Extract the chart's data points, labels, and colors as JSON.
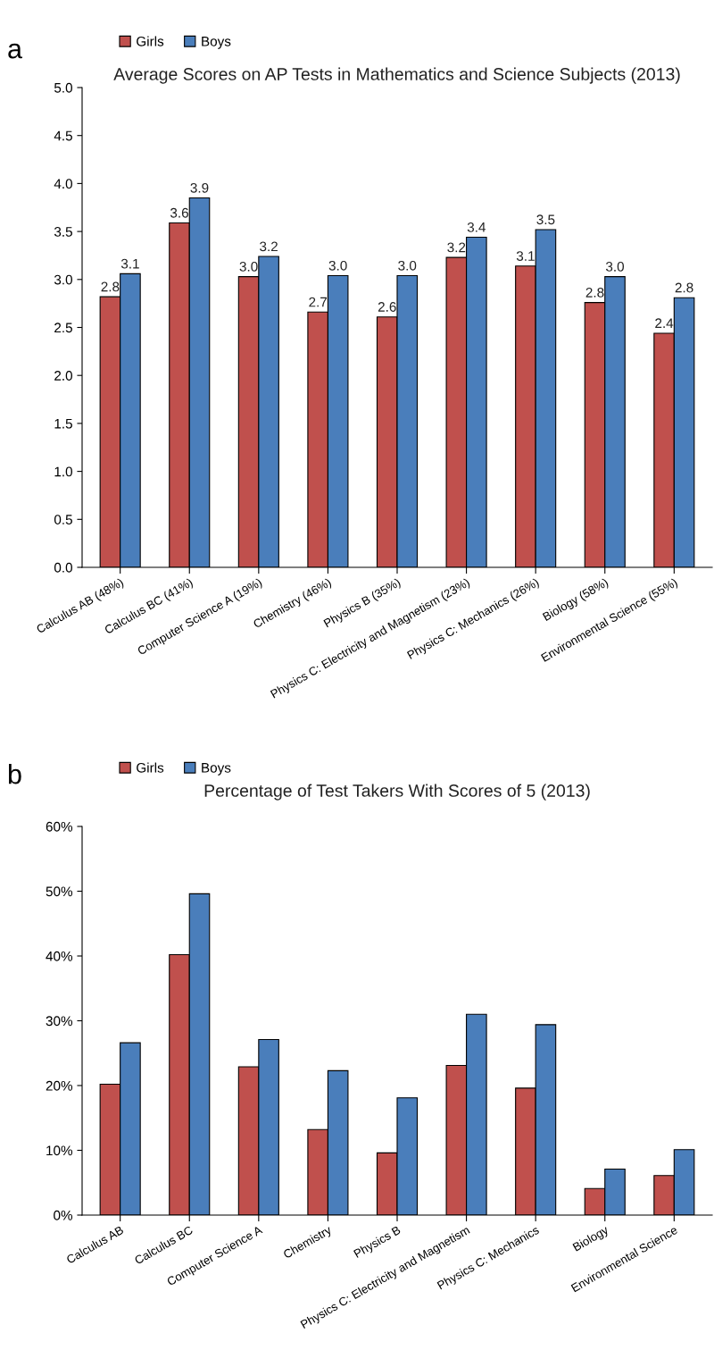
{
  "chart_data": [
    {
      "type": "bar",
      "title": "Average Scores on AP Tests in Mathematics and Science Subjects (2013)",
      "annotations": [
        "a"
      ],
      "categories": [
        "Calculus AB (48%)",
        "Calculus BC (41%)",
        "Computer Science A (19%)",
        "Chemistry (46%)",
        "Physics B (35%)",
        "Physics C: Electricity and Magnetism (23%)",
        "Physics C: Mechanics (26%)",
        "Biology (58%)",
        "Environmental Science (55%)"
      ],
      "series": [
        {
          "name": "Girls",
          "color": "#c0504d",
          "values": [
            2.82,
            3.59,
            3.03,
            2.66,
            2.61,
            3.23,
            3.14,
            2.76,
            2.44
          ],
          "value_labels": [
            "2.8",
            "3.6",
            "3.0",
            "2.7",
            "2.6",
            "3.2",
            "3.1",
            "2.8",
            "2.4"
          ]
        },
        {
          "name": "Boys",
          "color": "#4a7ebb",
          "values": [
            3.06,
            3.85,
            3.24,
            3.04,
            3.04,
            3.44,
            3.52,
            3.03,
            2.81
          ],
          "value_labels": [
            "3.1",
            "3.9",
            "3.2",
            "3.0",
            "3.0",
            "3.4",
            "3.5",
            "3.0",
            "2.8"
          ]
        }
      ],
      "ylim": [
        0,
        5
      ],
      "yticks": [
        {
          "value": 0,
          "label": "0.0"
        },
        0.5,
        {
          "value": 1,
          "label": "1.0"
        },
        1.5,
        {
          "value": 2,
          "label": "2.0"
        },
        2.5,
        {
          "value": 3,
          "label": "3.0"
        },
        3.5,
        {
          "value": 4,
          "label": "4.0"
        },
        4.5,
        {
          "value": 5,
          "label": "5.0"
        }
      ],
      "grid": false,
      "legend": "top left"
    },
    {
      "type": "bar",
      "title": "Percentage of Test Takers With Scores of 5 (2013)",
      "annotations": [
        "b"
      ],
      "categories": [
        "Calculus AB",
        "Calculus BC",
        "Computer Science A",
        "Chemistry",
        "Physics B",
        "Physics C: Electricity and Magnetism",
        "Physics C: Mechanics",
        "Biology",
        "Environmental Science"
      ],
      "series": [
        {
          "name": "Girls",
          "color": "#c0504d",
          "values": [
            20.2,
            40.2,
            22.9,
            13.2,
            9.6,
            23.1,
            19.6,
            4.1,
            6.1
          ]
        },
        {
          "name": "Boys",
          "color": "#4a7ebb",
          "values": [
            26.6,
            49.6,
            27.1,
            22.3,
            18.1,
            31.0,
            29.4,
            7.1,
            10.1
          ]
        }
      ],
      "ylim": [
        0,
        60
      ],
      "yticks": [
        {
          "value": 0,
          "label": "0%"
        },
        {
          "value": 10,
          "label": "10%"
        },
        {
          "value": 20,
          "label": "20%"
        },
        {
          "value": 30,
          "label": "30%"
        },
        {
          "value": 40,
          "label": "40%"
        },
        {
          "value": 50,
          "label": "50%"
        },
        {
          "value": 60,
          "label": "60%"
        }
      ],
      "grid": false,
      "legend": "top left"
    }
  ]
}
